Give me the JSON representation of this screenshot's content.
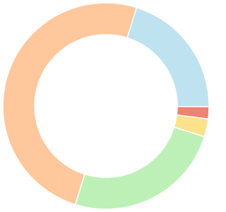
{
  "chart_data": {
    "type": "doughnut",
    "values": [
      20.3,
      1.9,
      2.8,
      25,
      50
    ],
    "colors": [
      "#bfe2f0",
      "#ee8273",
      "#fde28c",
      "#bdf0b6",
      "#ffc79c"
    ]
  }
}
